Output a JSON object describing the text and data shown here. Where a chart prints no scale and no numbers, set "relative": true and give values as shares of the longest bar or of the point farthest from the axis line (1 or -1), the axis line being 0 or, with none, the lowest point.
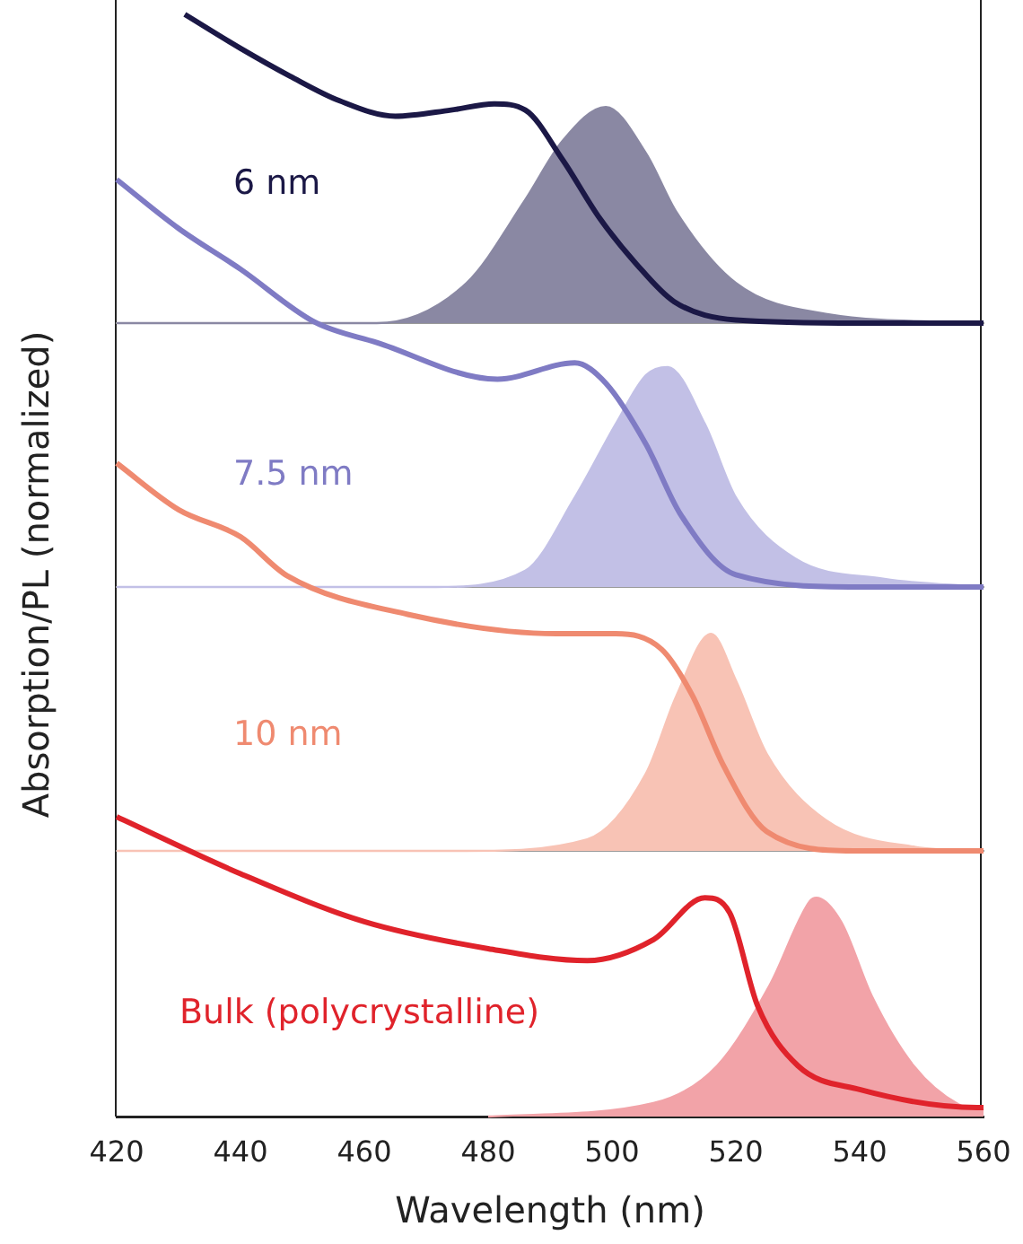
{
  "chart_data": [
    {
      "type": "line",
      "relative": true,
      "xlim": [
        420,
        560
      ],
      "xticks": [
        420,
        440,
        460,
        480,
        500,
        520,
        540,
        560
      ],
      "tick_labels": false,
      "grid": false,
      "legend": false,
      "annotations": [
        "6 nm"
      ],
      "series": [
        {
          "type": "line",
          "color": "#1b1846",
          "x": [
            431,
            440,
            448,
            456,
            465,
            474,
            481,
            486,
            492,
            498,
            504,
            510,
            520,
            540,
            560
          ],
          "values": [
            1.0,
            0.89,
            0.8,
            0.72,
            0.67,
            0.69,
            0.71,
            0.69,
            0.53,
            0.34,
            0.19,
            0.07,
            0.01,
            0,
            0
          ]
        },
        {
          "type": "area",
          "color": "#8a88a3",
          "x": [
            420,
            462,
            476.5,
            486,
            492,
            499,
            505.5,
            510.4,
            520,
            534.5,
            560
          ],
          "values": [
            0,
            0,
            0.13,
            0.4,
            0.59,
            0.7,
            0.55,
            0.36,
            0.13,
            0.03,
            0
          ]
        }
      ]
    },
    {
      "type": "line",
      "relative": true,
      "xlim": [
        420,
        560
      ],
      "xticks": [
        420,
        440,
        460,
        480,
        500,
        520,
        540,
        560
      ],
      "tick_labels": false,
      "grid": false,
      "legend": false,
      "annotations": [
        "7.5 nm"
      ],
      "series": [
        {
          "type": "line",
          "color": "#7f7bc4",
          "x": [
            420,
            430,
            440,
            452,
            462,
            481.5,
            494,
            499,
            505.5,
            511,
            520,
            540,
            560
          ],
          "values": [
            1.0,
            0.88,
            0.78,
            0.65,
            0.6,
            0.51,
            0.55,
            0.5,
            0.35,
            0.18,
            0.03,
            0,
            0
          ]
        },
        {
          "type": "area",
          "color": "#c2c0e6",
          "x": [
            420,
            471.6,
            486,
            494,
            500.6,
            505.5,
            509,
            515,
            520,
            529.6,
            544,
            560
          ],
          "values": [
            0,
            0,
            0.04,
            0.22,
            0.4,
            0.52,
            0.54,
            0.4,
            0.22,
            0.07,
            0.02,
            0
          ]
        }
      ]
    },
    {
      "type": "line",
      "relative": true,
      "xlim": [
        420,
        560
      ],
      "xticks": [
        420,
        440,
        460,
        480,
        500,
        520,
        540,
        560
      ],
      "tick_labels": false,
      "grid": false,
      "legend": false,
      "annotations": [
        "10 nm"
      ],
      "series": [
        {
          "type": "line",
          "color": "#ef8a70",
          "x": [
            420,
            430,
            440,
            447.5,
            467,
            491,
            500.6,
            508,
            513,
            518,
            525,
            539,
            560
          ],
          "values": [
            1.0,
            0.88,
            0.81,
            0.71,
            0.61,
            0.56,
            0.56,
            0.52,
            0.4,
            0.22,
            0.05,
            0,
            0
          ]
        },
        {
          "type": "area",
          "color": "#f8c3b5",
          "x": [
            420,
            476.5,
            496,
            505.5,
            510.4,
            516,
            520,
            525,
            534.5,
            549,
            560
          ],
          "values": [
            0,
            0,
            0.03,
            0.2,
            0.4,
            0.56,
            0.44,
            0.25,
            0.08,
            0.01,
            0
          ]
        }
      ]
    },
    {
      "type": "line",
      "relative": true,
      "xlim": [
        420,
        560
      ],
      "xticks": [
        420,
        440,
        460,
        480,
        500,
        520,
        540,
        560
      ],
      "xlabel": "Wavelength (nm)",
      "ylabel": "Absorption/PL (normalized)",
      "grid": false,
      "legend": false,
      "annotations": [
        "Bulk (polycrystalline)"
      ],
      "series": [
        {
          "type": "line",
          "color": "#e0232b",
          "x": [
            420,
            440,
            460,
            480,
            496,
            506.7,
            515,
            519,
            523.5,
            530,
            540,
            559,
            560
          ],
          "values": [
            1.0,
            0.81,
            0.65,
            0.56,
            0.52,
            0.59,
            0.73,
            0.68,
            0.37,
            0.17,
            0.09,
            0.03,
            0.03
          ]
        },
        {
          "type": "area",
          "color": "#f2a3a8",
          "x": [
            480,
            506.7,
            517,
            525.5,
            532,
            533,
            537,
            542,
            548.7,
            556,
            560
          ],
          "values": [
            0,
            0.045,
            0.17,
            0.44,
            0.72,
            0.73,
            0.65,
            0.4,
            0.17,
            0.04,
            0.02
          ]
        }
      ]
    }
  ]
}
